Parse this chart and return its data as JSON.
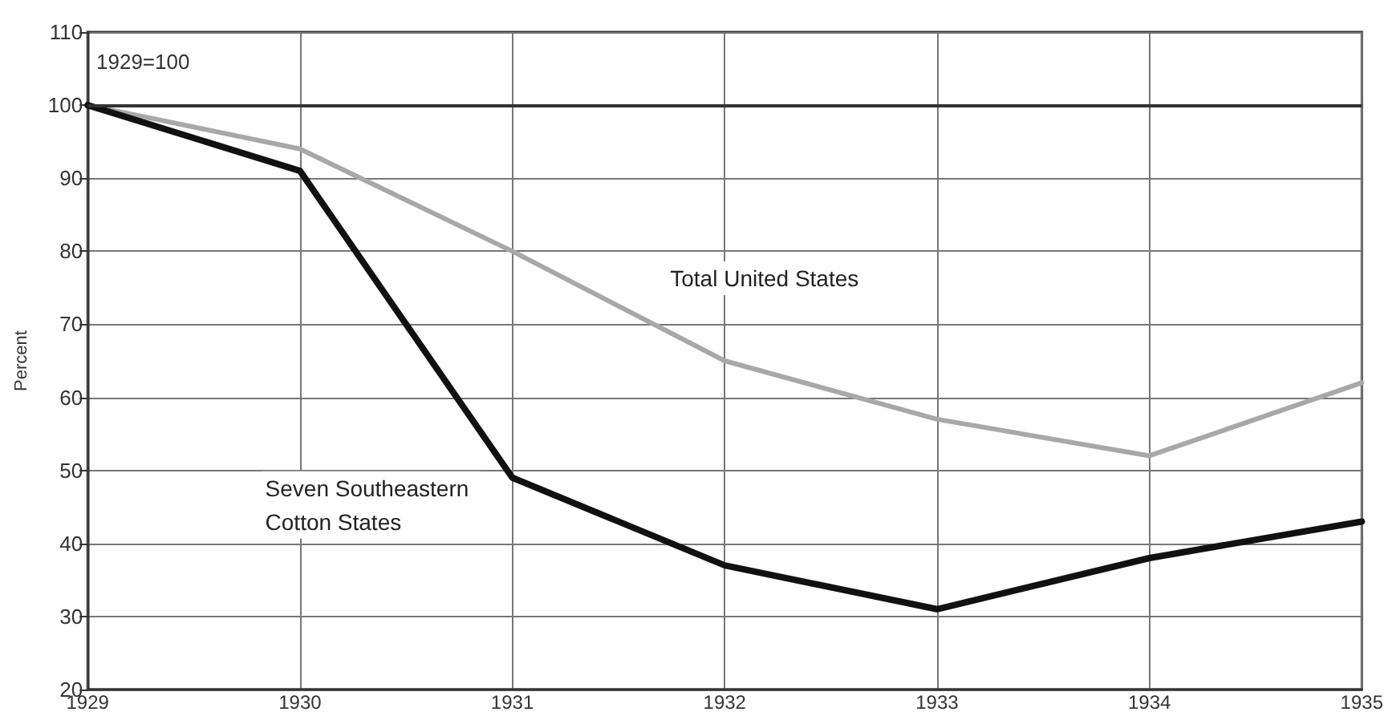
{
  "chart_data": {
    "type": "line",
    "ylabel": "Percent",
    "categories": [
      "1929",
      "1930",
      "1931",
      "1932",
      "1933",
      "1934",
      "1935"
    ],
    "series": [
      {
        "name": "Total United States",
        "color": "#a8a8a8",
        "values": [
          100,
          94,
          80,
          65,
          57,
          52,
          62
        ]
      },
      {
        "name": "Seven Southeastern Cotton States",
        "color": "#111111",
        "values": [
          100,
          91,
          49,
          37,
          31,
          38,
          43
        ]
      }
    ],
    "ylim": [
      20,
      110
    ],
    "yticks": [
      20,
      30,
      40,
      50,
      60,
      70,
      80,
      90,
      100,
      110
    ],
    "ref_lines": [
      {
        "axis": "y",
        "value": 100,
        "color": "#333333"
      }
    ],
    "annotations": [
      "1929=100"
    ],
    "grid": true,
    "legend": false,
    "marker": "none",
    "line_style": "solid"
  }
}
